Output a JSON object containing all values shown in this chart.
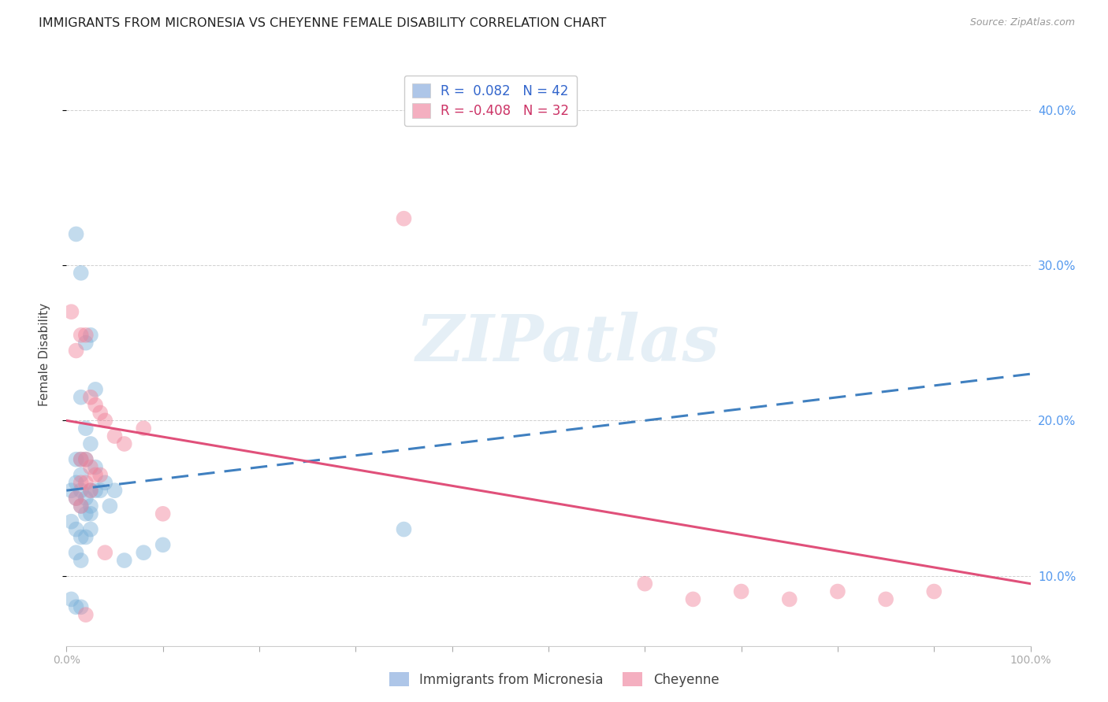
{
  "title": "IMMIGRANTS FROM MICRONESIA VS CHEYENNE FEMALE DISABILITY CORRELATION CHART",
  "source": "Source: ZipAtlas.com",
  "ylabel": "Female Disability",
  "ylabel_right_ticks": [
    "40.0%",
    "30.0%",
    "20.0%",
    "10.0%"
  ],
  "ylabel_right_vals": [
    0.4,
    0.3,
    0.2,
    0.1
  ],
  "legend_label1": "R =  0.082   N = 42",
  "legend_label2": "R = -0.408   N = 32",
  "legend_color1": "#aec6e8",
  "legend_color2": "#f4afc0",
  "blue_scatter_x": [
    0.5,
    1.0,
    1.5,
    2.0,
    2.5,
    3.0,
    3.5,
    4.0,
    4.5,
    5.0,
    1.0,
    1.5,
    2.0,
    2.5,
    3.0,
    1.5,
    2.0,
    2.5,
    1.0,
    1.5,
    2.0,
    2.5,
    3.0,
    1.0,
    1.5,
    1.5,
    2.0,
    2.5,
    0.5,
    1.0,
    1.5,
    2.0,
    1.0,
    1.5,
    0.5,
    1.0,
    1.5,
    35.0,
    10.0,
    8.0,
    6.0,
    2.5
  ],
  "blue_scatter_y": [
    0.155,
    0.16,
    0.165,
    0.15,
    0.145,
    0.17,
    0.155,
    0.16,
    0.145,
    0.155,
    0.32,
    0.295,
    0.25,
    0.255,
    0.22,
    0.215,
    0.195,
    0.185,
    0.175,
    0.175,
    0.175,
    0.155,
    0.155,
    0.15,
    0.155,
    0.145,
    0.14,
    0.14,
    0.135,
    0.13,
    0.125,
    0.125,
    0.115,
    0.11,
    0.085,
    0.08,
    0.08,
    0.13,
    0.12,
    0.115,
    0.11,
    0.13
  ],
  "pink_scatter_x": [
    0.5,
    1.0,
    1.5,
    2.0,
    2.5,
    3.0,
    3.5,
    4.0,
    5.0,
    6.0,
    1.5,
    2.0,
    2.5,
    3.0,
    3.5,
    1.5,
    2.0,
    2.5,
    1.0,
    1.5,
    35.0,
    8.0,
    10.0,
    60.0,
    65.0,
    70.0,
    75.0,
    80.0,
    85.0,
    90.0,
    4.0,
    2.0
  ],
  "pink_scatter_y": [
    0.27,
    0.245,
    0.255,
    0.255,
    0.215,
    0.21,
    0.205,
    0.2,
    0.19,
    0.185,
    0.175,
    0.175,
    0.17,
    0.165,
    0.165,
    0.16,
    0.16,
    0.155,
    0.15,
    0.145,
    0.33,
    0.195,
    0.14,
    0.095,
    0.085,
    0.09,
    0.085,
    0.09,
    0.085,
    0.09,
    0.115,
    0.075
  ],
  "blue_line_x": [
    0.0,
    100.0
  ],
  "blue_line_y": [
    0.155,
    0.23
  ],
  "pink_line_x": [
    0.0,
    100.0
  ],
  "pink_line_y": [
    0.2,
    0.095
  ],
  "xlim": [
    0.0,
    100.0
  ],
  "ylim": [
    0.055,
    0.43
  ],
  "dot_size": 200,
  "dot_alpha": 0.45,
  "blue_dot_color": "#7ab0d8",
  "pink_dot_color": "#f08098",
  "blue_line_color": "#4080c0",
  "pink_line_color": "#e0507a",
  "grid_color": "#d0d0d0",
  "background_color": "#ffffff",
  "watermark_text": "ZIPatlas",
  "title_fontsize": 11.5,
  "axis_fontsize": 10,
  "legend_fontsize": 12
}
